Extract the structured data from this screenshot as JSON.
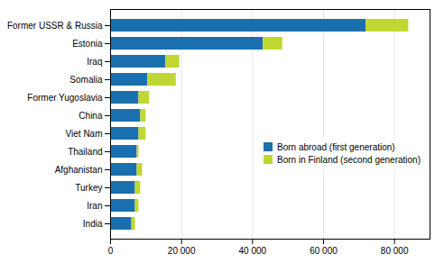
{
  "chart_data": {
    "type": "bar",
    "orientation": "horizontal",
    "stacked": true,
    "categories": [
      "Former USSR & Russia",
      "Estonia",
      "Iraq",
      "Somalia",
      "Former Yugoslavia",
      "China",
      "Viet Nam",
      "Thailand",
      "Afghanistan",
      "Turkey",
      "Iran",
      "India"
    ],
    "series": [
      {
        "name": "Born abroad (first generation)",
        "color": "#1a6faf",
        "values": [
          72000,
          43000,
          15500,
          10500,
          8000,
          8500,
          8000,
          7500,
          7500,
          7000,
          7000,
          6000
        ]
      },
      {
        "name": "Born in Finland (second generation)",
        "color": "#bfd730",
        "values": [
          12000,
          5500,
          4000,
          8000,
          3000,
          1500,
          2000,
          500,
          1500,
          1500,
          1000,
          1000
        ]
      }
    ],
    "xlim": [
      0,
      90000
    ],
    "xticks": [
      0,
      {
        "value": 20000,
        "label": "20 000"
      },
      {
        "value": 40000,
        "label": "40 000"
      },
      {
        "value": 60000,
        "label": "60 000"
      },
      {
        "value": 80000,
        "label": "80 000"
      }
    ],
    "grid": true,
    "legend": "right"
  }
}
